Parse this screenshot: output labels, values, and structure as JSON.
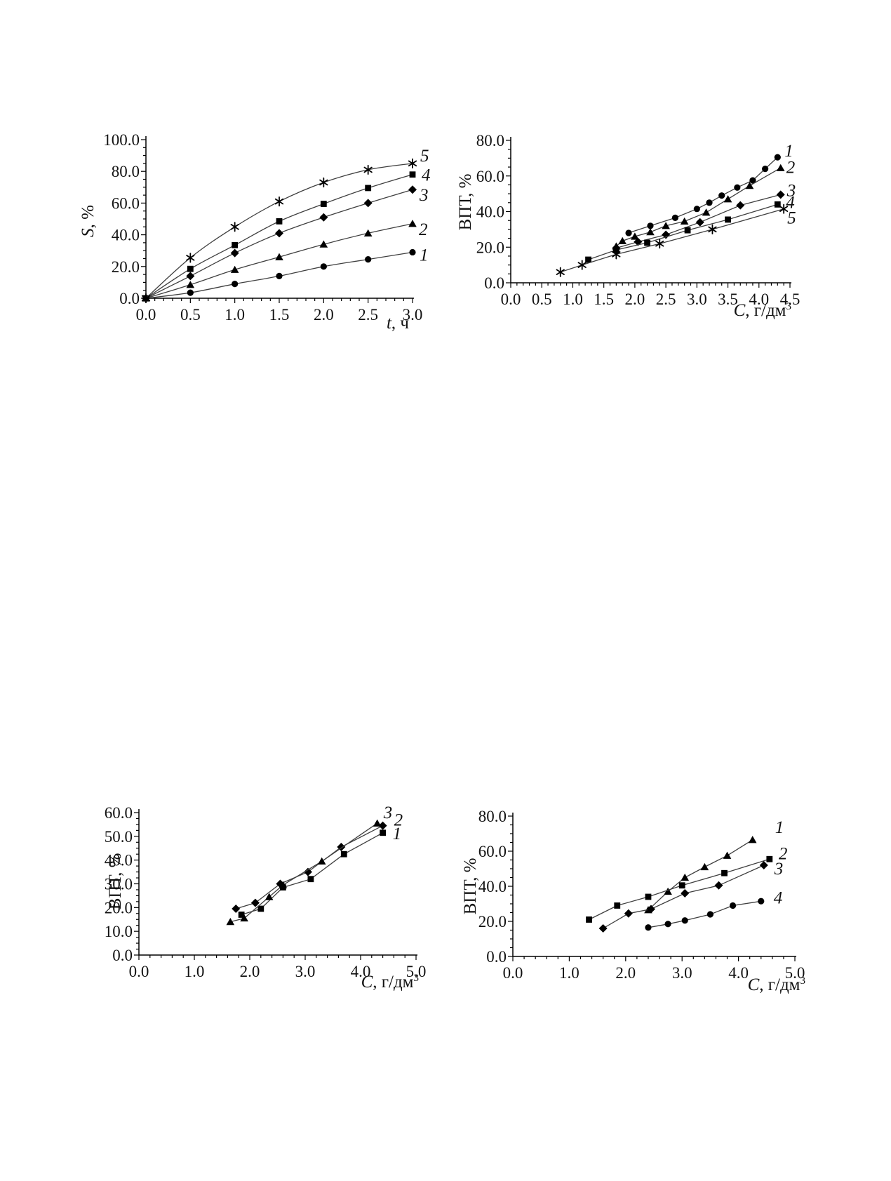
{
  "page": {
    "background": "#ffffff"
  },
  "colors": {
    "ink": "#000000",
    "line": "#3f3f3f",
    "text": "#111111"
  },
  "chart_data": [
    {
      "id": "top-left-s-vs-t",
      "type": "line",
      "title": "",
      "xlabel_italic": "t",
      "xlabel_rest": ", ч",
      "xlabel_sup": "",
      "ylabel_italic": "S",
      "ylabel_rest": ", %",
      "xlim": [
        0.0,
        3.0
      ],
      "ylim": [
        0.0,
        100.0
      ],
      "x_major": 0.5,
      "x_minor": 0.1,
      "y_major": 20,
      "y_minor": 5,
      "tick_decimals": 1,
      "grid": false,
      "smooth": true,
      "legend_position": "end-of-line numeric labels",
      "series": [
        {
          "name": "1",
          "marker": "circle",
          "x": [
            0,
            0.5,
            1.0,
            1.5,
            2.0,
            2.5,
            3.0
          ],
          "y": [
            0,
            3.5,
            9,
            14,
            20,
            24.5,
            29
          ],
          "label_offset": [
            10,
            12
          ]
        },
        {
          "name": "2",
          "marker": "triangle",
          "x": [
            0,
            0.5,
            1.0,
            1.5,
            2.0,
            2.5,
            3.0
          ],
          "y": [
            0,
            8.5,
            18,
            26,
            34,
            41,
            47
          ],
          "label_offset": [
            9,
            16
          ]
        },
        {
          "name": "3",
          "marker": "diamond",
          "x": [
            0,
            0.5,
            1.0,
            1.5,
            2.0,
            2.5,
            3.0
          ],
          "y": [
            0,
            14,
            28.5,
            41,
            51,
            60,
            68.5
          ],
          "label_offset": [
            10,
            16
          ]
        },
        {
          "name": "4",
          "marker": "square",
          "x": [
            0,
            0.5,
            1.0,
            1.5,
            2.0,
            2.5,
            3.0
          ],
          "y": [
            0,
            18.5,
            33.5,
            48.5,
            59.5,
            69.5,
            78
          ],
          "label_offset": [
            13,
            9
          ]
        },
        {
          "name": "5",
          "marker": "star",
          "x": [
            0,
            0.5,
            1.0,
            1.5,
            2.0,
            2.5,
            3.0
          ],
          "y": [
            0,
            25.5,
            45,
            61,
            73,
            81,
            85
          ],
          "label_offset": [
            11,
            -3
          ]
        }
      ]
    },
    {
      "id": "top-right-vpt-vs-c",
      "type": "line",
      "title": "",
      "xlabel_italic": "C",
      "xlabel_rest": ", г/дм",
      "xlabel_sup": "3",
      "ylabel_italic": "",
      "ylabel_rest": "ВПТ, %",
      "xlim": [
        0.0,
        4.5
      ],
      "ylim": [
        0.0,
        80.0
      ],
      "x_major": 0.5,
      "x_minor": 0.1,
      "y_major": 20,
      "y_minor": 5,
      "tick_decimals": 1,
      "grid": false,
      "smooth": false,
      "legend_position": "end-of-line numeric labels",
      "series": [
        {
          "name": "1",
          "marker": "circle",
          "x": [
            1.9,
            2.25,
            2.65,
            3.0,
            3.2,
            3.4,
            3.65,
            3.9,
            4.1,
            4.3
          ],
          "y": [
            28,
            32,
            36.5,
            41.5,
            45,
            49,
            53.5,
            57.5,
            64,
            70.5
          ],
          "label_offset": [
            10,
            -1
          ]
        },
        {
          "name": "2",
          "marker": "triangle",
          "x": [
            1.7,
            1.8,
            2.0,
            2.25,
            2.5,
            2.8,
            3.15,
            3.5,
            3.85,
            4.35
          ],
          "y": [
            20.5,
            23.5,
            26,
            28.5,
            32,
            34.5,
            39.5,
            47,
            54.5,
            64.5
          ],
          "label_offset": [
            8,
            7
          ]
        },
        {
          "name": "3",
          "marker": "diamond",
          "x": [
            1.7,
            2.05,
            2.5,
            3.05,
            3.7,
            4.35
          ],
          "y": [
            19.5,
            23,
            27,
            34,
            43.5,
            49.5
          ],
          "label_offset": [
            9,
            2
          ]
        },
        {
          "name": "4",
          "marker": "square",
          "x": [
            1.25,
            1.7,
            2.2,
            2.85,
            3.5,
            4.3
          ],
          "y": [
            13,
            18.5,
            22.5,
            29.5,
            35.5,
            44
          ],
          "label_offset": [
            12,
            5
          ]
        },
        {
          "name": "5",
          "marker": "star",
          "x": [
            0.8,
            1.15,
            1.7,
            2.4,
            3.25,
            4.4
          ],
          "y": [
            6,
            10,
            16,
            22,
            30,
            41.5
          ],
          "label_offset": [
            5,
            21
          ]
        }
      ]
    },
    {
      "id": "bottom-left-vpt-vs-c",
      "type": "line",
      "title": "",
      "xlabel_italic": "C",
      "xlabel_rest": ", г/дм",
      "xlabel_sup": "3",
      "ylabel_italic": "",
      "ylabel_rest": "ВПТ, %",
      "xlim": [
        0.0,
        5.0
      ],
      "ylim": [
        0.0,
        60.0
      ],
      "x_major": 1.0,
      "x_minor": 0.2,
      "y_major": 10,
      "y_minor": 2.5,
      "tick_decimals": 1,
      "grid": false,
      "smooth": false,
      "legend_position": "end-of-line numeric labels",
      "series": [
        {
          "name": "1",
          "marker": "square",
          "x": [
            1.85,
            2.2,
            2.6,
            3.1,
            3.7,
            4.4
          ],
          "y": [
            17,
            19.5,
            28.5,
            32,
            42.5,
            51.5
          ],
          "label_offset": [
            14,
            9
          ]
        },
        {
          "name": "2",
          "marker": "diamond",
          "x": [
            1.75,
            2.1,
            2.55,
            3.05,
            3.65,
            4.4
          ],
          "y": [
            19.5,
            22,
            30,
            35,
            45.5,
            54.5
          ],
          "label_offset": [
            16,
            0
          ]
        },
        {
          "name": "3",
          "marker": "triangle",
          "x": [
            1.65,
            1.9,
            2.35,
            2.6,
            3.3,
            4.3
          ],
          "y": [
            14,
            15.5,
            24.5,
            29.5,
            39.5,
            55.5
          ],
          "label_offset": [
            9,
            -7
          ]
        }
      ]
    },
    {
      "id": "bottom-right-vpt-vs-c",
      "type": "line",
      "title": "",
      "xlabel_italic": "C",
      "xlabel_rest": ", г/дм",
      "xlabel_sup": "3",
      "ylabel_italic": "",
      "ylabel_rest": "ВПТ, %",
      "xlim": [
        0.0,
        5.0
      ],
      "ylim": [
        0.0,
        80.0
      ],
      "x_major": 1.0,
      "x_minor": 0.2,
      "y_major": 20,
      "y_minor": 5,
      "tick_decimals": 1,
      "grid": false,
      "smooth": false,
      "legend_position": "end-of-line numeric labels",
      "series": [
        {
          "name": "1",
          "marker": "triangle",
          "x": [
            2.4,
            2.75,
            3.05,
            3.4,
            3.8,
            4.25
          ],
          "y": [
            26.5,
            37,
            45,
            51,
            57.5,
            66.5
          ],
          "label_offset": [
            32,
            -10
          ]
        },
        {
          "name": "2",
          "marker": "square",
          "x": [
            1.35,
            1.85,
            2.4,
            3.0,
            3.75,
            4.55
          ],
          "y": [
            21,
            29,
            34,
            40.5,
            47.5,
            55.5
          ],
          "label_offset": [
            13,
            0
          ]
        },
        {
          "name": "3",
          "marker": "diamond",
          "x": [
            1.6,
            2.05,
            2.45,
            3.05,
            3.65,
            4.45
          ],
          "y": [
            16,
            24.5,
            27,
            36,
            40.5,
            52
          ],
          "label_offset": [
            15,
            13
          ]
        },
        {
          "name": "4",
          "marker": "circle",
          "x": [
            2.4,
            2.75,
            3.05,
            3.5,
            3.9,
            4.4
          ],
          "y": [
            16.5,
            18.5,
            20.5,
            24,
            29,
            31.5
          ],
          "label_offset": [
            18,
            3
          ]
        }
      ]
    }
  ]
}
